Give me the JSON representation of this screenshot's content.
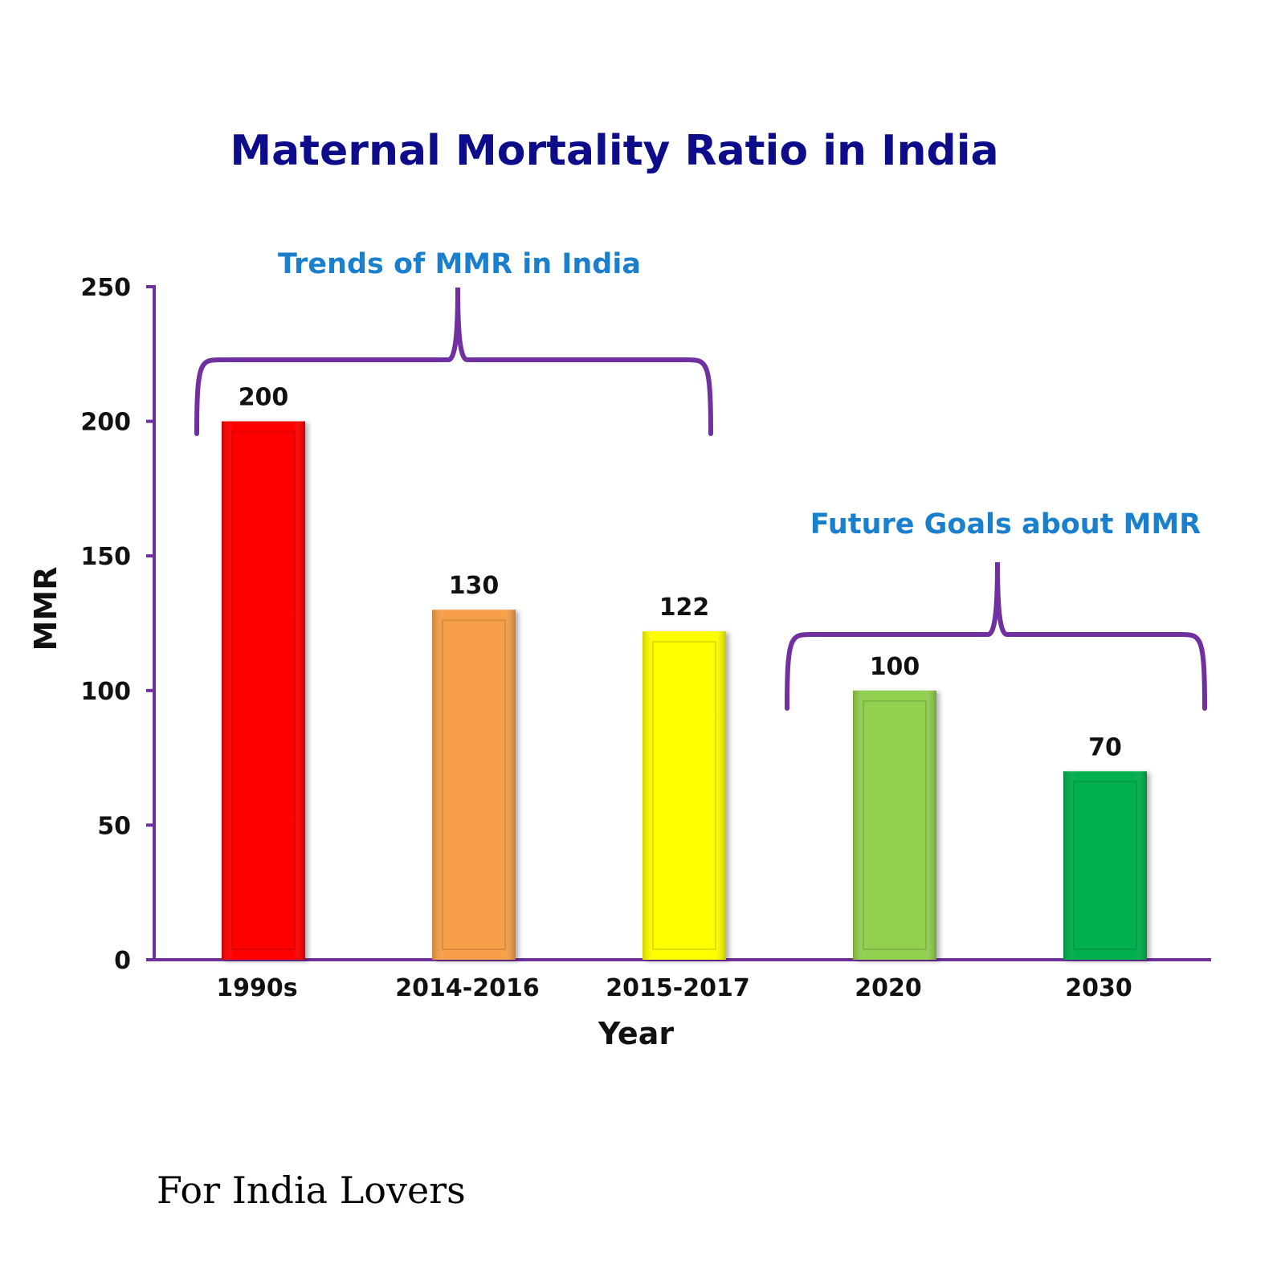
{
  "chart_data": {
    "type": "bar",
    "title": "Maternal Mortality Ratio in India",
    "xlabel": "Year",
    "ylabel": "MMR",
    "ylim": [
      0,
      250
    ],
    "yticks": [
      0,
      50,
      100,
      150,
      200,
      250
    ],
    "categories": [
      "1990s",
      "2014-2016",
      "2015-2017",
      "2020",
      "2030"
    ],
    "values": [
      200,
      130,
      122,
      100,
      70
    ],
    "colors": [
      "#ff0000",
      "#f7a04a",
      "#ffff00",
      "#92d050",
      "#00b050"
    ],
    "axis_color": "#7030a0",
    "grid": false,
    "annotations": [
      {
        "text": "Trends of MMR in India",
        "covers": [
          "1990s",
          "2014-2016",
          "2015-2017"
        ]
      },
      {
        "text": "Future Goals about MMR",
        "covers": [
          "2020",
          "2030"
        ]
      }
    ]
  },
  "footer": "For India Lovers"
}
